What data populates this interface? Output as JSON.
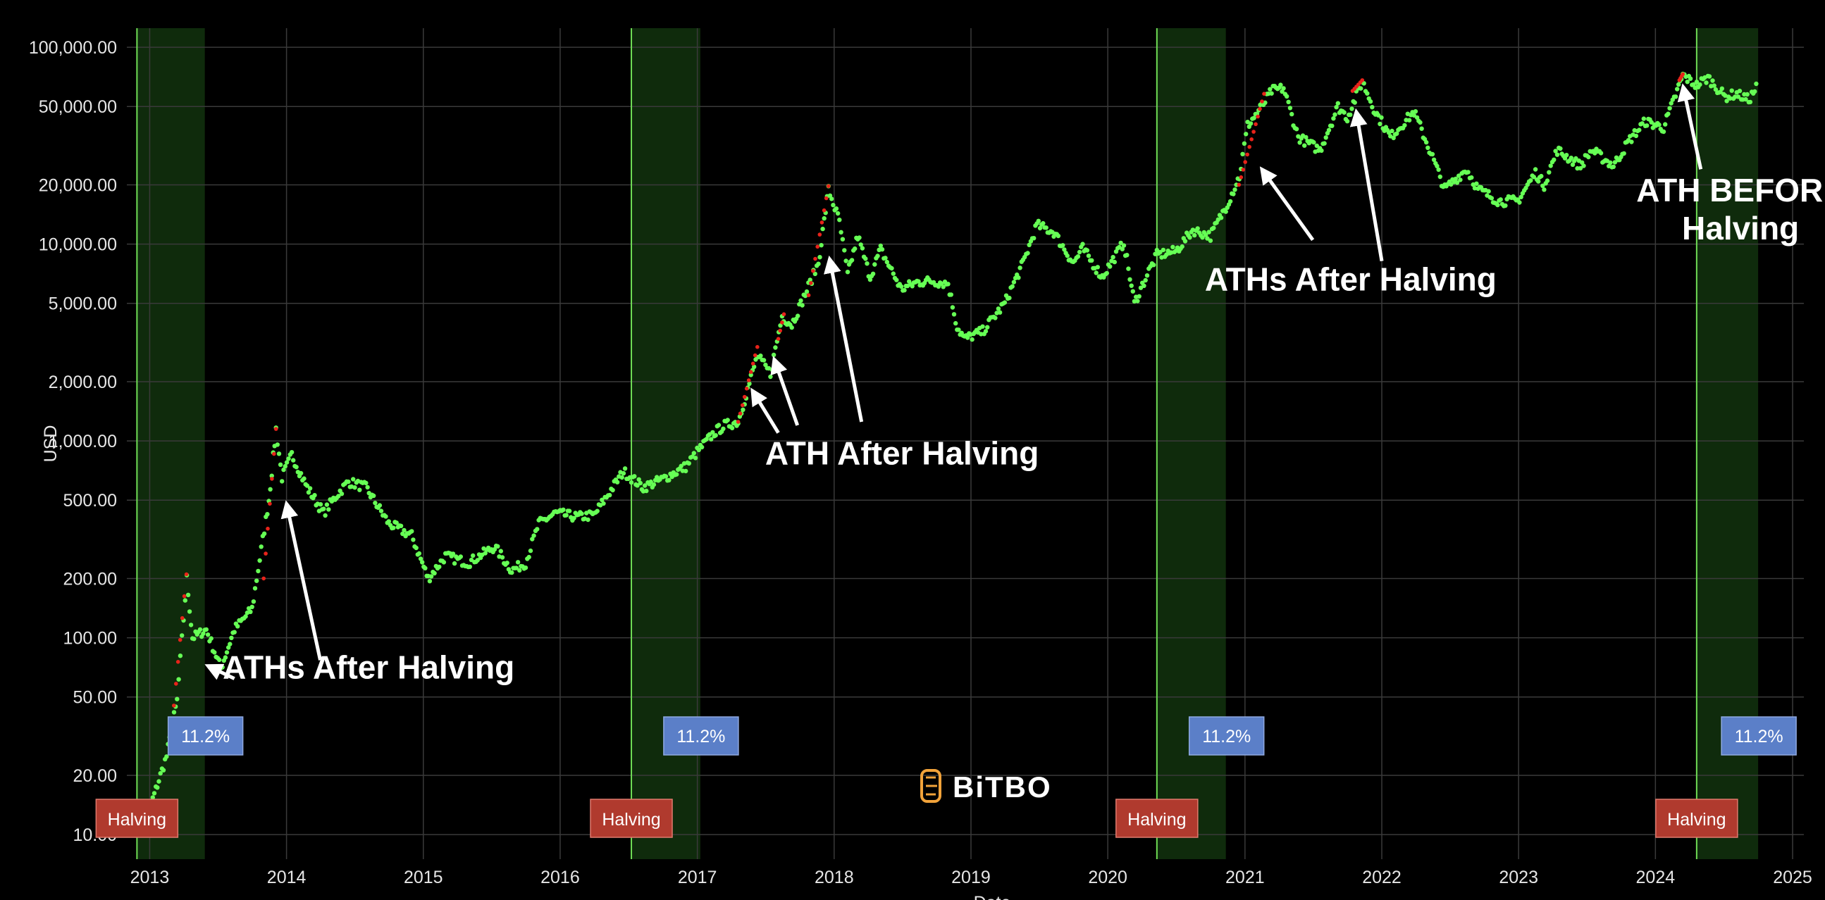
{
  "chart_data": {
    "type": "scatter",
    "title": "",
    "xlabel": "Date",
    "ylabel": "USD",
    "y_scale": "log",
    "ylim": [
      7.5,
      125000
    ],
    "xlim": [
      "2012-11-01",
      "2025-01-31"
    ],
    "grid": true,
    "x_ticks": [
      "2013",
      "2014",
      "2015",
      "2016",
      "2017",
      "2018",
      "2019",
      "2020",
      "2021",
      "2022",
      "2023",
      "2024",
      "2025"
    ],
    "y_ticks": [
      {
        "value": 10,
        "label": "10.00"
      },
      {
        "value": 20,
        "label": "20.00"
      },
      {
        "value": 50,
        "label": "50.00"
      },
      {
        "value": 100,
        "label": "100.00"
      },
      {
        "value": 200,
        "label": "200.00"
      },
      {
        "value": 500,
        "label": "500.00"
      },
      {
        "value": 1000,
        "label": "1,000.00"
      },
      {
        "value": 2000,
        "label": "2,000.00"
      },
      {
        "value": 5000,
        "label": "5,000.00"
      },
      {
        "value": 10000,
        "label": "10,000.00"
      },
      {
        "value": 20000,
        "label": "20,000.00"
      },
      {
        "value": 50000,
        "label": "50,000.00"
      },
      {
        "value": 100000,
        "label": "100,000.00"
      }
    ],
    "series": [
      {
        "color": "#66ff55",
        "x": [
          "2012-11-28",
          "2013-01-01",
          "2013-02-15",
          "2013-03-15",
          "2013-04-10",
          "2013-04-25",
          "2013-06-01",
          "2013-07-10",
          "2013-08-15",
          "2013-10-01",
          "2013-11-15",
          "2013-12-04",
          "2013-12-20",
          "2014-01-15",
          "2014-02-25",
          "2014-04-10",
          "2014-05-15",
          "2014-06-15",
          "2014-08-01",
          "2014-10-01",
          "2014-12-01",
          "2015-01-14",
          "2015-03-01",
          "2015-05-01",
          "2015-07-10",
          "2015-08-25",
          "2015-10-01",
          "2015-11-05",
          "2015-12-20",
          "2016-02-15",
          "2016-04-01",
          "2016-06-18",
          "2016-07-09",
          "2016-08-10",
          "2016-10-01",
          "2016-12-01",
          "2017-01-05",
          "2017-02-15",
          "2017-03-15",
          "2017-04-20",
          "2017-06-10",
          "2017-07-15",
          "2017-08-15",
          "2017-09-10",
          "2017-10-20",
          "2017-11-20",
          "2017-12-17",
          "2018-01-15",
          "2018-02-06",
          "2018-03-05",
          "2018-04-07",
          "2018-05-05",
          "2018-06-29",
          "2018-08-10",
          "2018-09-15",
          "2018-11-01",
          "2018-11-25",
          "2018-12-15",
          "2019-02-01",
          "2019-04-01",
          "2019-05-20",
          "2019-06-26",
          "2019-08-10",
          "2019-10-01",
          "2019-10-26",
          "2019-12-17",
          "2020-02-13",
          "2020-03-12",
          "2020-04-15",
          "2020-05-11",
          "2020-07-01",
          "2020-08-15",
          "2020-10-01",
          "2020-11-15",
          "2020-12-17",
          "2021-01-08",
          "2021-02-15",
          "2021-03-13",
          "2021-04-14",
          "2021-05-23",
          "2021-07-20",
          "2021-09-06",
          "2021-10-01",
          "2021-11-10",
          "2021-12-15",
          "2022-01-24",
          "2022-03-28",
          "2022-05-12",
          "2022-06-18",
          "2022-08-15",
          "2022-09-15",
          "2022-11-10",
          "2022-12-30",
          "2023-02-15",
          "2023-03-10",
          "2023-04-14",
          "2023-06-15",
          "2023-07-15",
          "2023-09-11",
          "2023-10-25",
          "2023-12-05",
          "2024-01-23",
          "2024-02-28",
          "2024-03-14",
          "2024-04-20",
          "2024-05-20",
          "2024-07-05",
          "2024-08-05",
          "2024-09-06",
          "2024-09-30"
        ],
        "y": [
          12,
          13.5,
          25,
          48,
          200,
          100,
          110,
          70,
          110,
          140,
          500,
          1150,
          650,
          850,
          580,
          430,
          530,
          620,
          580,
          380,
          330,
          200,
          260,
          240,
          290,
          220,
          240,
          380,
          430,
          410,
          420,
          700,
          650,
          580,
          640,
          740,
          900,
          1100,
          1200,
          1250,
          2700,
          2200,
          4300,
          3900,
          5800,
          8000,
          19000,
          13000,
          7000,
          11000,
          6800,
          9400,
          5900,
          6400,
          6500,
          6300,
          3800,
          3300,
          3600,
          5000,
          8000,
          12500,
          11500,
          8000,
          9500,
          6800,
          10200,
          5000,
          7000,
          8800,
          9200,
          11800,
          11000,
          16000,
          22000,
          40000,
          50000,
          60000,
          62000,
          35000,
          30000,
          50000,
          44000,
          67000,
          47000,
          35000,
          47000,
          29000,
          19000,
          24000,
          19000,
          16500,
          16600,
          23000,
          20000,
          30000,
          25000,
          30000,
          25000,
          34000,
          42000,
          39000,
          60000,
          72000,
          64000,
          70000,
          56000,
          58000,
          54000,
          64000
        ]
      }
    ],
    "ath_markers": {
      "color": "#e8231a",
      "segments": [
        {
          "x": [
            "2013-03-01",
            "2013-04-09"
          ],
          "y": [
            35,
            210
          ]
        },
        {
          "x": [
            "2013-11-01",
            "2013-12-04"
          ],
          "y": [
            200,
            1150
          ]
        },
        {
          "x": [
            "2017-04-20",
            "2017-06-10"
          ],
          "y": [
            1250,
            3000
          ]
        },
        {
          "x": [
            "2017-08-05",
            "2017-08-20"
          ],
          "y": [
            3300,
            4400
          ]
        },
        {
          "x": [
            "2017-10-25",
            "2017-12-17"
          ],
          "y": [
            5500,
            19700
          ]
        },
        {
          "x": [
            "2020-12-16",
            "2021-02-21"
          ],
          "y": [
            20000,
            58000
          ]
        },
        {
          "x": [
            "2021-10-15",
            "2021-11-10"
          ],
          "y": [
            60000,
            68000
          ]
        },
        {
          "x": [
            "2024-03-05",
            "2024-03-14"
          ],
          "y": [
            68000,
            73000
          ]
        }
      ]
    },
    "halvings": [
      {
        "date": "2012-11-28",
        "band_end": "2013-05-28",
        "label": "Halving",
        "pct": "11.2%"
      },
      {
        "date": "2016-07-09",
        "band_end": "2017-01-09",
        "label": "Halving",
        "pct": "11.2%"
      },
      {
        "date": "2020-05-11",
        "band_end": "2020-11-11",
        "label": "Halving",
        "pct": "11.2%"
      },
      {
        "date": "2024-04-20",
        "band_end": "2024-10-01",
        "label": "Halving",
        "pct": "11.2%"
      }
    ],
    "annotations": [
      {
        "text": [
          "ATHs After Halving"
        ],
        "text_x": "2013-07-15",
        "text_y": 62,
        "anchor": "start",
        "arrows": [
          {
            "from": [
              "2013-08-15",
              62
            ],
            "to": [
              "2013-06-05",
              72
            ]
          },
          {
            "from": [
              "2014-04-01",
              77
            ],
            "to": [
              "2014-01-01",
              480
            ]
          }
        ]
      },
      {
        "text": [
          "ATH After Halving"
        ],
        "text_x": "2017-07-01",
        "text_y": 760,
        "anchor": "start",
        "arrows": [
          {
            "from": [
              "2017-08-05",
              1100
            ],
            "to": [
              "2017-05-28",
              1800
            ]
          },
          {
            "from": [
              "2017-09-25",
              1200
            ],
            "to": [
              "2017-07-25",
              2600
            ]
          },
          {
            "from": [
              "2018-03-15",
              1250
            ],
            "to": [
              "2017-12-20",
              8400
            ]
          }
        ]
      },
      {
        "text": [
          "ATHs After Halving"
        ],
        "text_x": "2021-10-10",
        "text_y": 5800,
        "anchor": "middle",
        "arrows": [
          {
            "from": [
              "2021-07-01",
              10500
            ],
            "to": [
              "2021-02-15",
              24000
            ]
          },
          {
            "from": [
              "2022-01-01",
              8200
            ],
            "to": [
              "2021-10-25",
              47000
            ]
          }
        ]
      },
      {
        "text": [
          "ATH BEFORE",
          "Halving"
        ],
        "text_x": "2024-08-15",
        "text_y": 16500,
        "anchor": "middle",
        "arrows": [
          {
            "from": [
              "2024-05-01",
              24000
            ],
            "to": [
              "2024-03-15",
              63000
            ]
          }
        ]
      }
    ],
    "watermark": "BiTBO",
    "colors": {
      "background": "#000000",
      "grid": "#3a3a3a",
      "band": "#0f2b0c",
      "halving_line": "#6fdd55",
      "pct_badge": "#5b7fc8",
      "halving_badge": "#b03a2e",
      "logo_accent": "#f2a33a"
    }
  }
}
